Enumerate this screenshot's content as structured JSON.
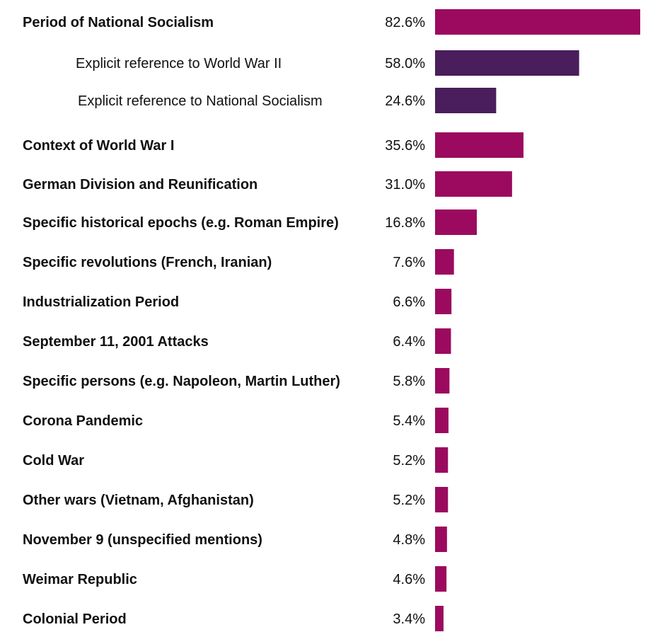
{
  "chart_data": {
    "type": "bar",
    "orientation": "horizontal",
    "value_suffix": "%",
    "xlim": [
      0,
      82.6
    ],
    "grid": false,
    "colors": {
      "main": "#9b0a5e",
      "sub": "#4a1d5c"
    },
    "bars": [
      {
        "label": "Period of National Socialism",
        "value": 82.6,
        "value_label": "82.6%",
        "level": "main"
      },
      {
        "label": "Explicit reference to World War II",
        "value": 58.0,
        "value_label": "58.0%",
        "level": "sub"
      },
      {
        "label": "Explicit reference to National Socialism",
        "value": 24.6,
        "value_label": "24.6%",
        "level": "sub"
      },
      {
        "label": "Context of World War I",
        "value": 35.6,
        "value_label": "35.6%",
        "level": "main"
      },
      {
        "label": "German Division and Reunification",
        "value": 31.0,
        "value_label": "31.0%",
        "level": "main"
      },
      {
        "label": "Specific historical epochs (e.g. Roman Empire)",
        "value": 16.8,
        "value_label": "16.8%",
        "level": "main"
      },
      {
        "label": "Specific revolutions (French, Iranian)",
        "value": 7.6,
        "value_label": "7.6%",
        "level": "main"
      },
      {
        "label": "Industrialization Period",
        "value": 6.6,
        "value_label": "6.6%",
        "level": "main"
      },
      {
        "label": "September 11, 2001 Attacks",
        "value": 6.4,
        "value_label": "6.4%",
        "level": "main"
      },
      {
        "label": "Specific persons (e.g. Napoleon, Martin Luther)",
        "value": 5.8,
        "value_label": "5.8%",
        "level": "main"
      },
      {
        "label": "Corona Pandemic",
        "value": 5.4,
        "value_label": "5.4%",
        "level": "main"
      },
      {
        "label": "Cold War",
        "value": 5.2,
        "value_label": "5.2%",
        "level": "main"
      },
      {
        "label": "Other wars (Vietnam, Afghanistan)",
        "value": 5.2,
        "value_label": "5.2%",
        "level": "main"
      },
      {
        "label": "November 9 (unspecified mentions)",
        "value": 4.8,
        "value_label": "4.8%",
        "level": "main"
      },
      {
        "label": "Weimar Republic",
        "value": 4.6,
        "value_label": "4.6%",
        "level": "main"
      },
      {
        "label": "Colonial Period",
        "value": 3.4,
        "value_label": "3.4%",
        "level": "main"
      }
    ]
  }
}
